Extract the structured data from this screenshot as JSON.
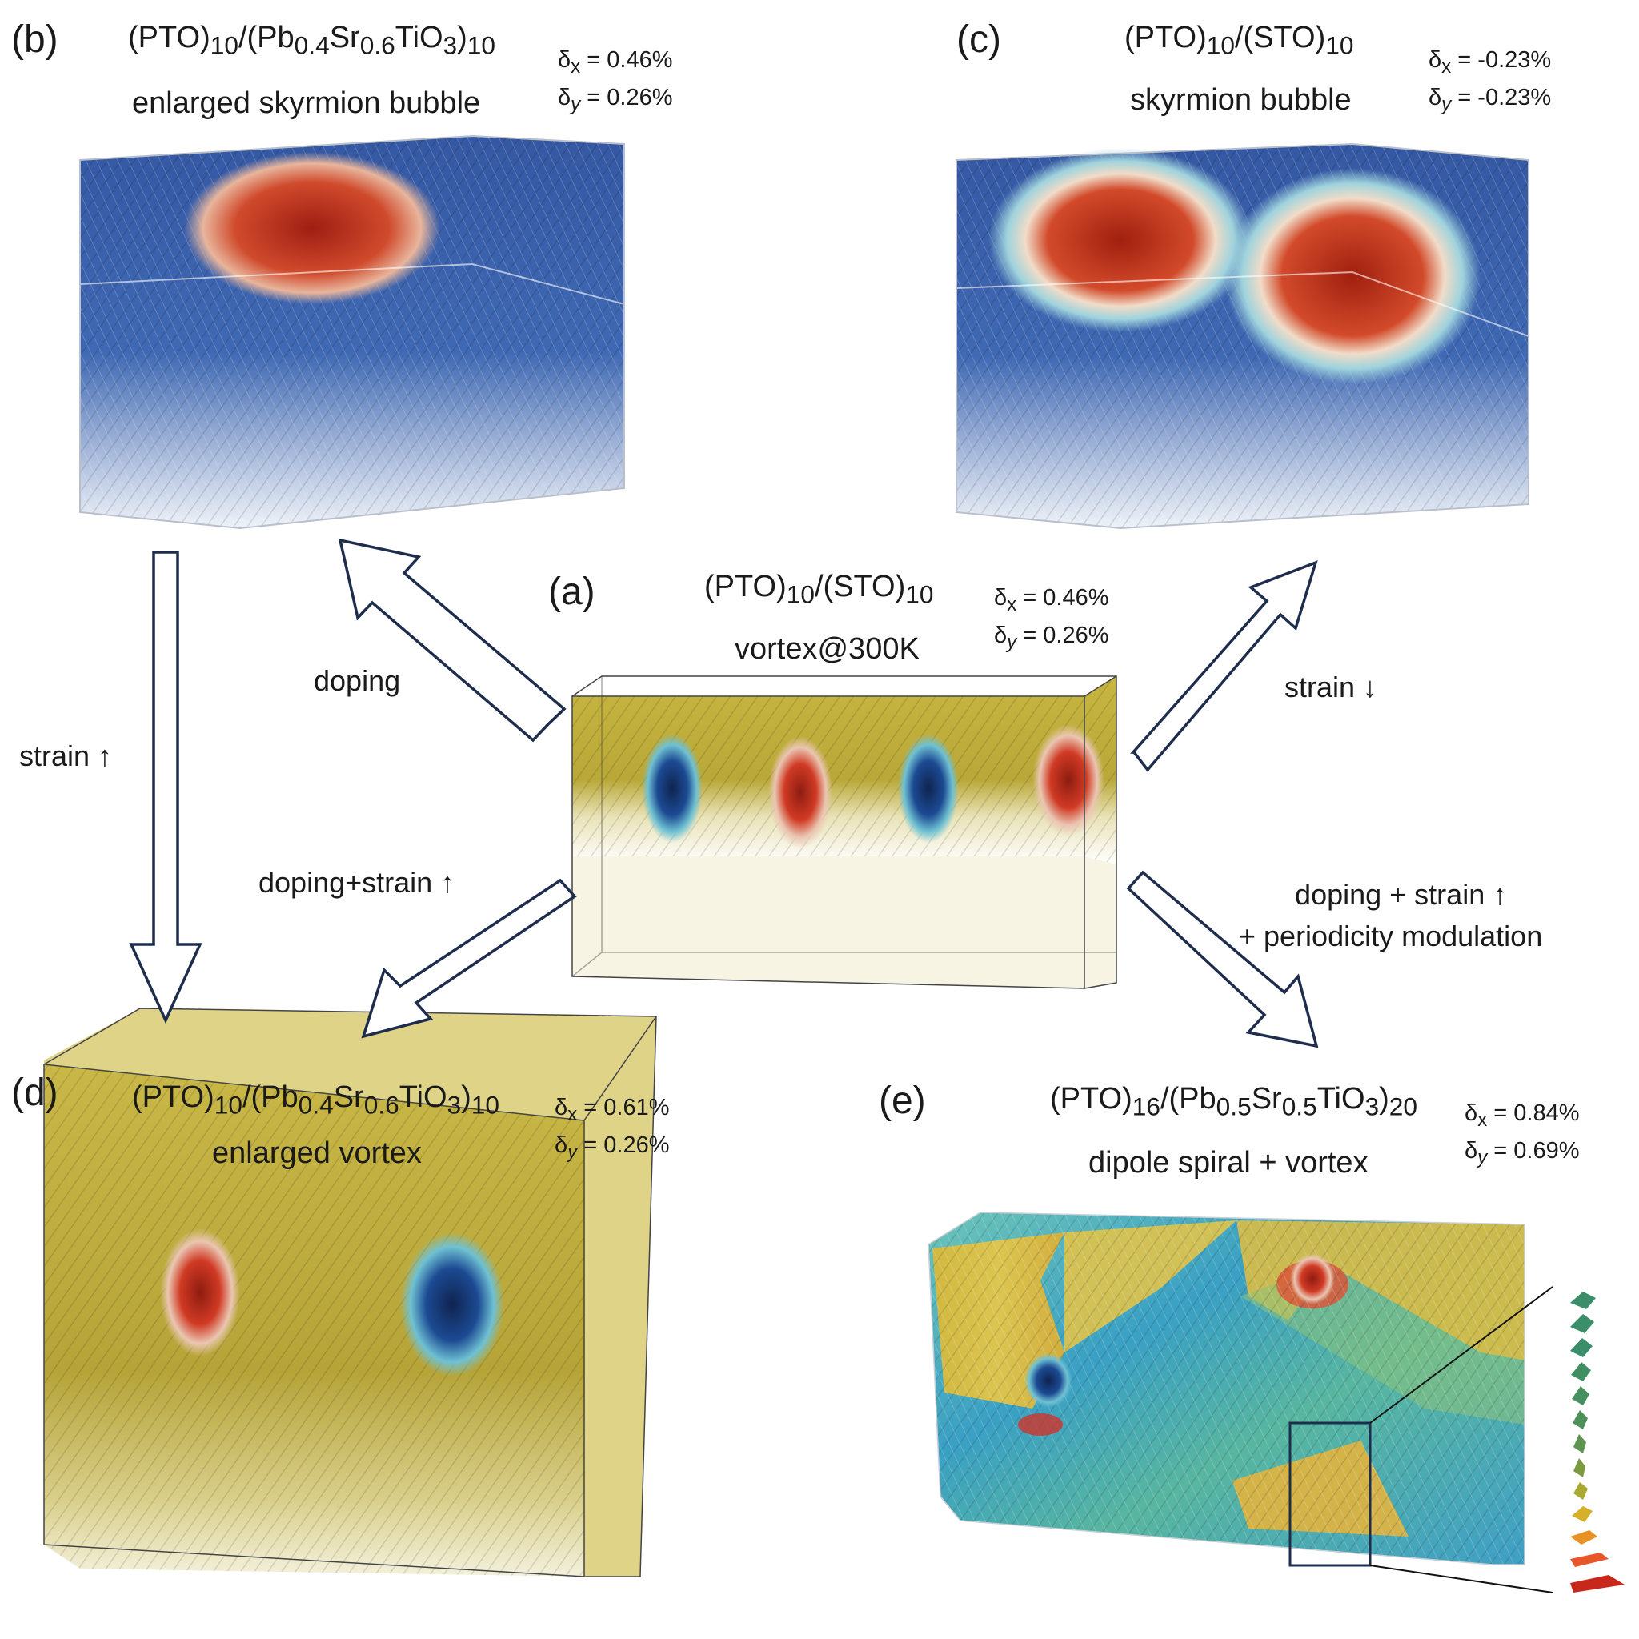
{
  "colors": {
    "arrow_stroke": "#1f2d4d",
    "polarization_blue": "#1b3e8c",
    "polarization_red": "#c8321f",
    "polarization_yellow": "#c2b23c",
    "polarization_cyan": "#57b6c9",
    "polarization_green": "#2f8f5e"
  },
  "panels": {
    "a": {
      "label": "(a)",
      "title": {
        "pre": "(PTO)",
        "s1": "10",
        "mid": "/(STO)",
        "s2": "10"
      },
      "state": "vortex@300K",
      "dx": "= 0.46%",
      "dy": "= 0.26%"
    },
    "b": {
      "label": "(b)",
      "title": {
        "pre": "(PTO)",
        "s1": "10",
        "p2": "/(Pb",
        "s2": "0.4",
        "p3": "Sr",
        "s3": "0.6",
        "p4": "TiO",
        "s4": "3",
        "p5": ")",
        "s5": "10"
      },
      "state": "enlarged skyrmion bubble",
      "dx": "= 0.46%",
      "dy": "= 0.26%"
    },
    "c": {
      "label": "(c)",
      "title": {
        "pre": "(PTO)",
        "s1": "10",
        "mid": "/(STO)",
        "s2": "10"
      },
      "state": "skyrmion bubble",
      "dx": "= -0.23%",
      "dy": "= -0.23%"
    },
    "d": {
      "label": "(d)",
      "title": {
        "pre": "(PTO)",
        "s1": "10",
        "p2": "/(Pb",
        "s2": "0.4",
        "p3": "Sr",
        "s3": "0.6",
        "p4": "TiO",
        "s4": "3",
        "p5": ")",
        "s5": "10"
      },
      "state": "enlarged vortex",
      "dx": "= 0.61%",
      "dy": "= 0.26%"
    },
    "e": {
      "label": "(e)",
      "title": {
        "pre": "(PTO)",
        "s1": "16",
        "p2": "/(Pb",
        "s2": "0.5",
        "p3": "Sr",
        "s3": "0.5",
        "p4": "TiO",
        "s4": "3",
        "p5": ")",
        "s5": "20"
      },
      "state": "dipole spiral + vortex",
      "dx": "= 0.84%",
      "dy": "= 0.69%"
    }
  },
  "transitions": {
    "a_to_b": "doping",
    "a_to_c": "strain ↓",
    "b_to_d": "strain ↑",
    "a_to_d": "doping+strain ↑",
    "a_to_e_line1": "doping + strain ↑",
    "a_to_e_line2": "+ periodicity modulation"
  },
  "symbols": {
    "delta": "δ",
    "x": "x",
    "y": "y"
  }
}
